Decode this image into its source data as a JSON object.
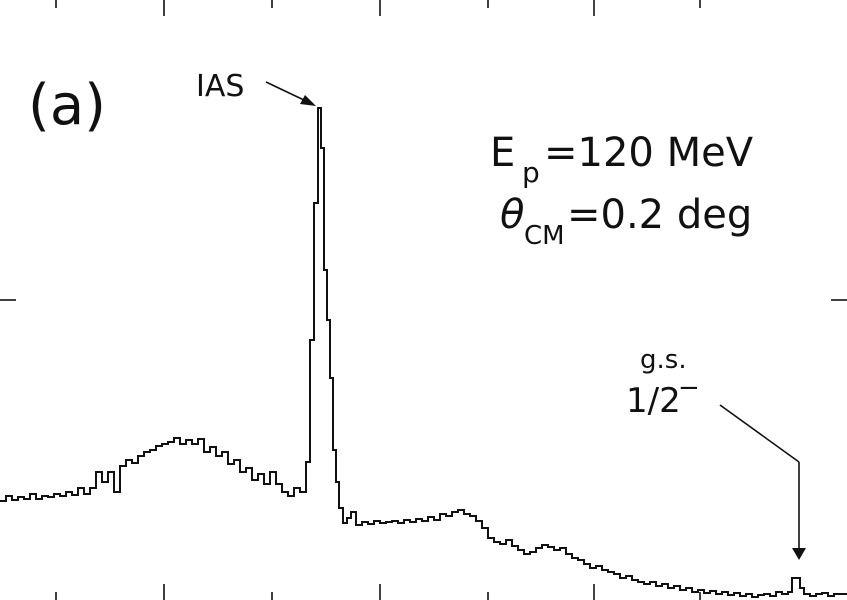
{
  "chart_data": {
    "type": "line",
    "title": "",
    "xlabel": "",
    "ylabel": "",
    "panel_label": "(a)",
    "annotations": {
      "beam_energy": {
        "symbol": "E",
        "subscript": "p",
        "value": "=120 MeV"
      },
      "angle": {
        "symbol": "θ",
        "subscript": "CM",
        "value": "=0.2 deg"
      },
      "peak_ias": "IAS",
      "peak_gs_line1": "g.s.",
      "peak_gs_line2": "1/2",
      "peak_gs_sup": "−"
    },
    "xlim": [
      0,
      847
    ],
    "ylim": [
      0,
      600
    ],
    "grid": false,
    "x_major_ticks": [
      164,
      380,
      594
    ],
    "x_minor_ticks": [
      56,
      272,
      488,
      700
    ],
    "y_ticks": [
      300
    ],
    "series": [
      {
        "values": [
          [
            0,
            99
          ],
          [
            6,
            99
          ],
          [
            6,
            104
          ],
          [
            12,
            104
          ],
          [
            12,
            100
          ],
          [
            18,
            100
          ],
          [
            18,
            103
          ],
          [
            24,
            103
          ],
          [
            24,
            101
          ],
          [
            30,
            101
          ],
          [
            30,
            106
          ],
          [
            36,
            106
          ],
          [
            36,
            101
          ],
          [
            42,
            101
          ],
          [
            42,
            104
          ],
          [
            48,
            104
          ],
          [
            48,
            103
          ],
          [
            54,
            103
          ],
          [
            54,
            106
          ],
          [
            60,
            106
          ],
          [
            60,
            104
          ],
          [
            66,
            104
          ],
          [
            66,
            108
          ],
          [
            72,
            108
          ],
          [
            72,
            105
          ],
          [
            78,
            105
          ],
          [
            78,
            112
          ],
          [
            84,
            112
          ],
          [
            84,
            106
          ],
          [
            90,
            106
          ],
          [
            90,
            112
          ],
          [
            96,
            112
          ],
          [
            96,
            128
          ],
          [
            102,
            128
          ],
          [
            102,
            118
          ],
          [
            108,
            118
          ],
          [
            108,
            128
          ],
          [
            114,
            128
          ],
          [
            114,
            108
          ],
          [
            120,
            108
          ],
          [
            120,
            134
          ],
          [
            126,
            134
          ],
          [
            126,
            140
          ],
          [
            132,
            140
          ],
          [
            132,
            137
          ],
          [
            138,
            137
          ],
          [
            138,
            144
          ],
          [
            144,
            144
          ],
          [
            144,
            148
          ],
          [
            150,
            148
          ],
          [
            150,
            150
          ],
          [
            156,
            150
          ],
          [
            156,
            154
          ],
          [
            162,
            154
          ],
          [
            162,
            156
          ],
          [
            168,
            156
          ],
          [
            168,
            158
          ],
          [
            174,
            158
          ],
          [
            174,
            162
          ],
          [
            180,
            162
          ],
          [
            180,
            156
          ],
          [
            186,
            156
          ],
          [
            186,
            160
          ],
          [
            192,
            160
          ],
          [
            192,
            156
          ],
          [
            198,
            156
          ],
          [
            198,
            161
          ],
          [
            204,
            161
          ],
          [
            204,
            148
          ],
          [
            210,
            148
          ],
          [
            210,
            153
          ],
          [
            216,
            153
          ],
          [
            216,
            144
          ],
          [
            222,
            144
          ],
          [
            222,
            148
          ],
          [
            228,
            148
          ],
          [
            228,
            136
          ],
          [
            234,
            136
          ],
          [
            234,
            140
          ],
          [
            240,
            140
          ],
          [
            240,
            128
          ],
          [
            246,
            128
          ],
          [
            246,
            132
          ],
          [
            252,
            132
          ],
          [
            252,
            120
          ],
          [
            258,
            120
          ],
          [
            258,
            126
          ],
          [
            264,
            126
          ],
          [
            264,
            116
          ],
          [
            270,
            116
          ],
          [
            270,
            128
          ],
          [
            276,
            128
          ],
          [
            276,
            116
          ],
          [
            282,
            116
          ],
          [
            282,
            108
          ],
          [
            288,
            108
          ],
          [
            288,
            104
          ],
          [
            294,
            104
          ],
          [
            294,
            112
          ],
          [
            300,
            112
          ],
          [
            300,
            108
          ],
          [
            306,
            108
          ],
          [
            306,
            138
          ],
          [
            310,
            138
          ],
          [
            310,
            260
          ],
          [
            314,
            260
          ],
          [
            314,
            397
          ],
          [
            318,
            397
          ],
          [
            318,
            492
          ],
          [
            321,
            492
          ],
          [
            321,
            452
          ],
          [
            324,
            452
          ],
          [
            324,
            330
          ],
          [
            327,
            330
          ],
          [
            327,
            280
          ],
          [
            330,
            280
          ],
          [
            330,
            222
          ],
          [
            333,
            222
          ],
          [
            333,
            150
          ],
          [
            336,
            150
          ],
          [
            336,
            118
          ],
          [
            339,
            118
          ],
          [
            339,
            92
          ],
          [
            343,
            92
          ],
          [
            343,
            77
          ],
          [
            347,
            77
          ],
          [
            347,
            82
          ],
          [
            351,
            82
          ],
          [
            351,
            88
          ],
          [
            356,
            88
          ],
          [
            356,
            75
          ],
          [
            362,
            75
          ],
          [
            362,
            78
          ],
          [
            368,
            78
          ],
          [
            368,
            76
          ],
          [
            374,
            76
          ],
          [
            374,
            79
          ],
          [
            380,
            79
          ],
          [
            380,
            77
          ],
          [
            386,
            77
          ],
          [
            386,
            78
          ],
          [
            392,
            78
          ],
          [
            392,
            79
          ],
          [
            398,
            79
          ],
          [
            398,
            77
          ],
          [
            404,
            77
          ],
          [
            404,
            80
          ],
          [
            410,
            80
          ],
          [
            410,
            78
          ],
          [
            416,
            78
          ],
          [
            416,
            81
          ],
          [
            422,
            81
          ],
          [
            422,
            79
          ],
          [
            428,
            79
          ],
          [
            428,
            83
          ],
          [
            434,
            83
          ],
          [
            434,
            80
          ],
          [
            440,
            80
          ],
          [
            440,
            86
          ],
          [
            446,
            86
          ],
          [
            446,
            84
          ],
          [
            452,
            84
          ],
          [
            452,
            88
          ],
          [
            458,
            88
          ],
          [
            458,
            90
          ],
          [
            464,
            90
          ],
          [
            464,
            86
          ],
          [
            470,
            86
          ],
          [
            470,
            84
          ],
          [
            476,
            84
          ],
          [
            476,
            79
          ],
          [
            482,
            79
          ],
          [
            482,
            72
          ],
          [
            488,
            72
          ],
          [
            488,
            62
          ],
          [
            494,
            62
          ],
          [
            494,
            58
          ],
          [
            500,
            58
          ],
          [
            500,
            56
          ],
          [
            506,
            56
          ],
          [
            506,
            60
          ],
          [
            512,
            60
          ],
          [
            512,
            54
          ],
          [
            518,
            54
          ],
          [
            518,
            50
          ],
          [
            524,
            50
          ],
          [
            524,
            46
          ],
          [
            530,
            46
          ],
          [
            530,
            48
          ],
          [
            536,
            48
          ],
          [
            536,
            52
          ],
          [
            542,
            52
          ],
          [
            542,
            55
          ],
          [
            548,
            55
          ],
          [
            548,
            53
          ],
          [
            554,
            53
          ],
          [
            554,
            50
          ],
          [
            560,
            50
          ],
          [
            560,
            52
          ],
          [
            566,
            52
          ],
          [
            566,
            46
          ],
          [
            572,
            46
          ],
          [
            572,
            42
          ],
          [
            578,
            42
          ],
          [
            578,
            40
          ],
          [
            584,
            40
          ],
          [
            584,
            36
          ],
          [
            590,
            36
          ],
          [
            590,
            32
          ],
          [
            596,
            32
          ],
          [
            596,
            34
          ],
          [
            602,
            34
          ],
          [
            602,
            30
          ],
          [
            608,
            30
          ],
          [
            608,
            28
          ],
          [
            614,
            28
          ],
          [
            614,
            26
          ],
          [
            620,
            26
          ],
          [
            620,
            22
          ],
          [
            626,
            22
          ],
          [
            626,
            24
          ],
          [
            632,
            24
          ],
          [
            632,
            20
          ],
          [
            638,
            20
          ],
          [
            638,
            18
          ],
          [
            644,
            18
          ],
          [
            644,
            16
          ],
          [
            650,
            16
          ],
          [
            650,
            18
          ],
          [
            656,
            18
          ],
          [
            656,
            14
          ],
          [
            662,
            14
          ],
          [
            662,
            16
          ],
          [
            668,
            16
          ],
          [
            668,
            12
          ],
          [
            674,
            12
          ],
          [
            674,
            14
          ],
          [
            680,
            14
          ],
          [
            680,
            10
          ],
          [
            686,
            10
          ],
          [
            686,
            12
          ],
          [
            692,
            12
          ],
          [
            692,
            8
          ],
          [
            698,
            8
          ],
          [
            698,
            10
          ],
          [
            704,
            10
          ],
          [
            704,
            7
          ],
          [
            710,
            7
          ],
          [
            710,
            9
          ],
          [
            716,
            9
          ],
          [
            716,
            6
          ],
          [
            722,
            6
          ],
          [
            722,
            8
          ],
          [
            728,
            8
          ],
          [
            728,
            5
          ],
          [
            734,
            5
          ],
          [
            734,
            7
          ],
          [
            740,
            7
          ],
          [
            740,
            4
          ],
          [
            746,
            4
          ],
          [
            746,
            6
          ],
          [
            752,
            6
          ],
          [
            752,
            3
          ],
          [
            758,
            3
          ],
          [
            758,
            5
          ],
          [
            764,
            5
          ],
          [
            764,
            6
          ],
          [
            770,
            6
          ],
          [
            770,
            4
          ],
          [
            776,
            4
          ],
          [
            776,
            8
          ],
          [
            782,
            8
          ],
          [
            782,
            6
          ],
          [
            788,
            6
          ],
          [
            788,
            8
          ],
          [
            792,
            8
          ],
          [
            792,
            22
          ],
          [
            800,
            22
          ],
          [
            800,
            12
          ],
          [
            804,
            12
          ],
          [
            804,
            6
          ],
          [
            810,
            6
          ],
          [
            810,
            4
          ],
          [
            816,
            4
          ],
          [
            816,
            6
          ],
          [
            822,
            6
          ],
          [
            822,
            7
          ],
          [
            828,
            7
          ],
          [
            828,
            4
          ],
          [
            834,
            4
          ],
          [
            834,
            6
          ],
          [
            847,
            6
          ]
        ]
      }
    ]
  }
}
